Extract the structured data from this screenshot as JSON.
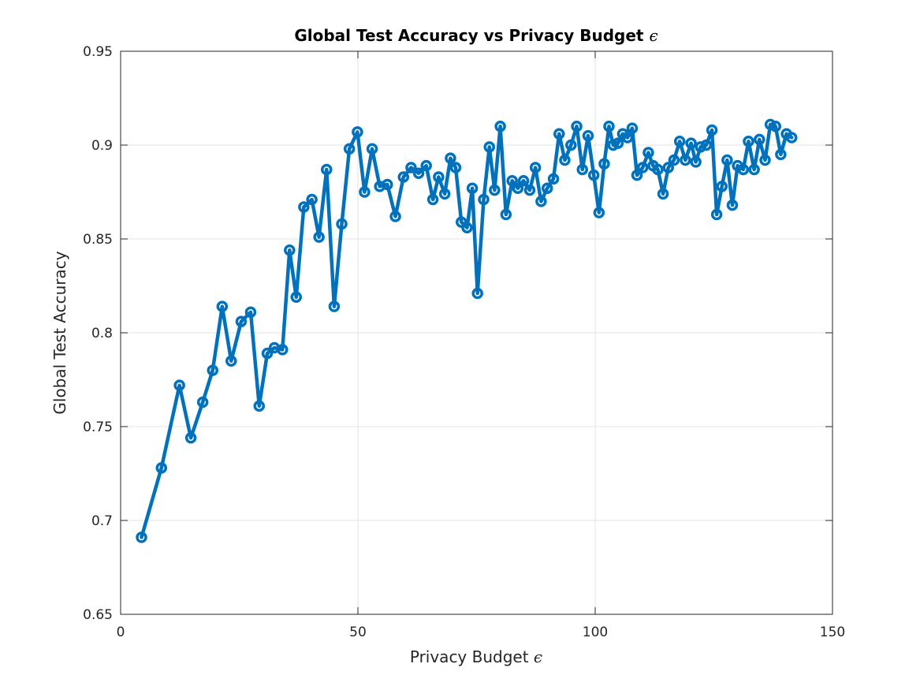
{
  "chart_data": {
    "type": "line",
    "title": "Global Test Accuracy vs Privacy Budget",
    "title_symbol": "ϵ",
    "xlabel": "Privacy Budget",
    "xlabel_symbol": "ϵ",
    "ylabel": "Global Test Accuracy",
    "xlim": [
      0,
      150
    ],
    "ylim": [
      0.65,
      0.95
    ],
    "xticks": [
      "0",
      "50",
      "100",
      "150"
    ],
    "yticks": [
      "0.65",
      "0.7",
      "0.75",
      "0.8",
      "0.85",
      "0.9",
      "0.95"
    ],
    "grid": true,
    "marker": "circle",
    "color": "#0072BD",
    "series": [
      {
        "x": [
          4.4,
          8.6,
          12.4,
          14.8,
          17.3,
          19.4,
          21.4,
          23.3,
          25.4,
          27.4,
          29.2,
          30.9,
          32.4,
          34.1,
          35.6,
          37.0,
          38.6,
          40.3,
          41.8,
          43.4,
          45.0,
          46.6,
          48.2,
          49.9,
          51.4,
          53.0,
          54.6,
          56.2,
          57.9,
          59.6,
          61.2,
          62.8,
          64.4,
          65.8,
          67.0,
          68.3,
          69.5,
          70.6,
          71.8,
          73.0,
          74.1,
          75.2,
          76.5,
          77.7,
          78.8,
          80.0,
          81.2,
          82.5,
          83.7,
          84.9,
          86.2,
          87.4,
          88.6,
          89.9,
          91.2,
          92.4,
          93.6,
          94.9,
          96.1,
          97.3,
          98.5,
          99.7,
          100.8,
          101.9,
          102.9,
          103.8,
          104.8,
          105.8,
          106.8,
          107.8,
          108.8,
          110.0,
          111.2,
          112.2,
          113.2,
          114.3,
          115.4,
          116.6,
          117.8,
          119.0,
          120.2,
          121.2,
          122.2,
          123.4,
          124.6,
          125.6,
          126.7,
          127.8,
          128.9,
          130.0,
          131.2,
          132.3,
          133.5,
          134.6,
          135.8,
          136.9,
          138.0,
          139.1,
          140.3,
          141.4
        ],
        "y": [
          0.691,
          0.728,
          0.772,
          0.744,
          0.763,
          0.78,
          0.814,
          0.785,
          0.806,
          0.811,
          0.761,
          0.789,
          0.792,
          0.791,
          0.844,
          0.819,
          0.867,
          0.871,
          0.851,
          0.887,
          0.814,
          0.858,
          0.898,
          0.907,
          0.875,
          0.898,
          0.878,
          0.879,
          0.862,
          0.883,
          0.888,
          0.885,
          0.889,
          0.871,
          0.883,
          0.874,
          0.893,
          0.888,
          0.859,
          0.856,
          0.877,
          0.821,
          0.871,
          0.899,
          0.876,
          0.91,
          0.863,
          0.881,
          0.877,
          0.881,
          0.876,
          0.888,
          0.87,
          0.877,
          0.882,
          0.906,
          0.892,
          0.9,
          0.91,
          0.887,
          0.905,
          0.884,
          0.864,
          0.89,
          0.91,
          0.9,
          0.901,
          0.906,
          0.904,
          0.909,
          0.884,
          0.888,
          0.896,
          0.889,
          0.887,
          0.874,
          0.888,
          0.892,
          0.902,
          0.892,
          0.901,
          0.891,
          0.899,
          0.9,
          0.908,
          0.863,
          0.878,
          0.892,
          0.868,
          0.889,
          0.887,
          0.902,
          0.887,
          0.903,
          0.892,
          0.911,
          0.91,
          0.895,
          0.906,
          0.904
        ]
      }
    ]
  }
}
